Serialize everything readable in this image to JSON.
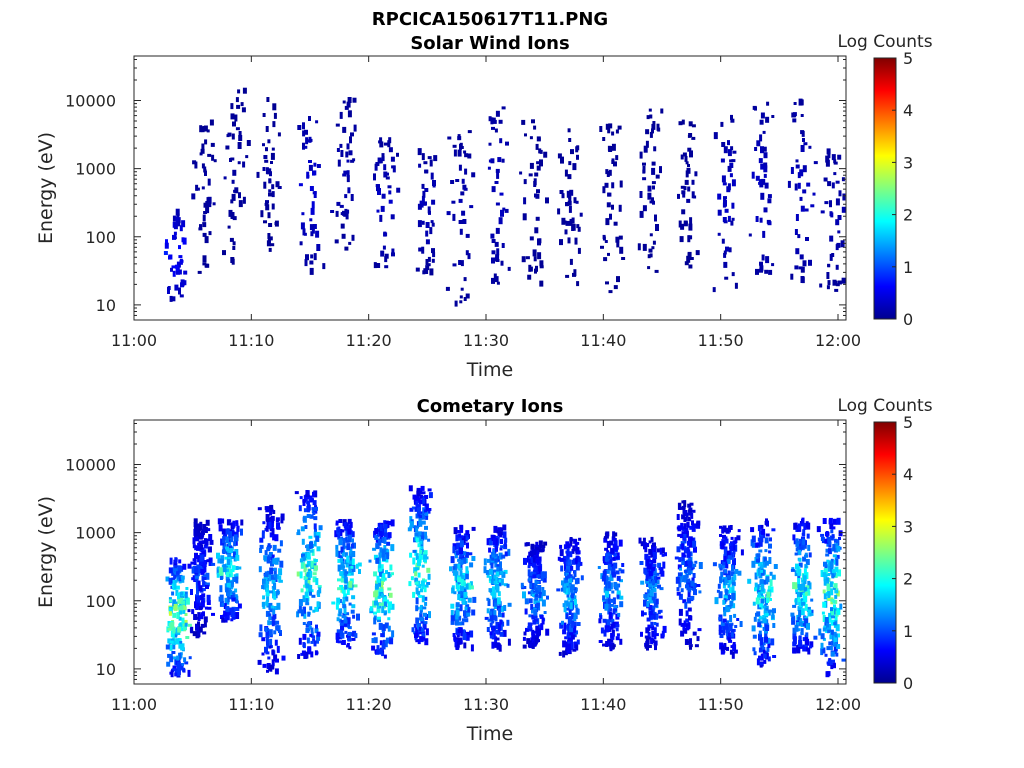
{
  "figure": {
    "title": "RPCICA150617T11.PNG"
  },
  "colorbar_scale": {
    "colors": [
      "#00008F",
      "#0000FF",
      "#0080FF",
      "#00FFFF",
      "#80FF80",
      "#FFFF00",
      "#FF8000",
      "#FF0000",
      "#800000"
    ]
  },
  "chart_data": [
    {
      "type": "heatmap",
      "title": "Solar Wind Ions",
      "xlabel": "Time",
      "ylabel": "Energy (eV)",
      "xticks": [
        "11:00",
        "11:10",
        "11:20",
        "11:30",
        "11:40",
        "11:50",
        "12:00"
      ],
      "xlim": [
        "11:00",
        "12:00"
      ],
      "yscale": "log",
      "yticks": [
        "10",
        "100",
        "1000",
        "10000"
      ],
      "ylim": [
        6,
        45000
      ],
      "colorbar": {
        "label": "Log Counts",
        "range": [
          0,
          5
        ],
        "ticks": [
          "0",
          "1",
          "2",
          "3",
          "4",
          "5"
        ]
      },
      "grid": false,
      "bursts": [
        {
          "time_min": 3.5,
          "e_low": 12,
          "e_high": 260,
          "level": 0.7
        },
        {
          "time_min": 5.8,
          "e_low": 30,
          "e_high": 5000,
          "level": 0.1
        },
        {
          "time_min": 8.5,
          "e_low": 40,
          "e_high": 15000,
          "level": 0.1
        },
        {
          "time_min": 11.5,
          "e_low": 60,
          "e_high": 12000,
          "level": 0.1
        },
        {
          "time_min": 14.8,
          "e_low": 30,
          "e_high": 8000,
          "level": 0.4
        },
        {
          "time_min": 18.0,
          "e_low": 60,
          "e_high": 12000,
          "level": 0.2
        },
        {
          "time_min": 21.2,
          "e_low": 30,
          "e_high": 3000,
          "level": 0.3
        },
        {
          "time_min": 24.8,
          "e_low": 30,
          "e_high": 2500,
          "level": 0.25
        },
        {
          "time_min": 27.8,
          "e_low": 10,
          "e_high": 5000,
          "level": 0.2
        },
        {
          "time_min": 30.8,
          "e_low": 20,
          "e_high": 8000,
          "level": 0.3
        },
        {
          "time_min": 34.0,
          "e_low": 20,
          "e_high": 5000,
          "level": 0.1
        },
        {
          "time_min": 37.0,
          "e_low": 20,
          "e_high": 5000,
          "level": 0.1
        },
        {
          "time_min": 40.5,
          "e_low": 15,
          "e_high": 5000,
          "level": 0.1
        },
        {
          "time_min": 44.0,
          "e_low": 30,
          "e_high": 8000,
          "level": 0.1
        },
        {
          "time_min": 47.0,
          "e_low": 30,
          "e_high": 5000,
          "level": 0.1
        },
        {
          "time_min": 50.5,
          "e_low": 15,
          "e_high": 8000,
          "level": 0.3
        },
        {
          "time_min": 53.5,
          "e_low": 20,
          "e_high": 10000,
          "level": 0.3
        },
        {
          "time_min": 56.8,
          "e_low": 20,
          "e_high": 10000,
          "level": 0.3
        },
        {
          "time_min": 59.5,
          "e_low": 15,
          "e_high": 3000,
          "level": 0.2
        }
      ]
    },
    {
      "type": "heatmap",
      "title": "Cometary Ions",
      "xlabel": "Time",
      "ylabel": "Energy (eV)",
      "xticks": [
        "11:00",
        "11:10",
        "11:20",
        "11:30",
        "11:40",
        "11:50",
        "12:00"
      ],
      "xlim": [
        "11:00",
        "12:00"
      ],
      "yscale": "log",
      "yticks": [
        "10",
        "100",
        "1000",
        "10000"
      ],
      "ylim": [
        6,
        45000
      ],
      "colorbar": {
        "label": "Log Counts",
        "range": [
          0,
          5
        ],
        "ticks": [
          "0",
          "1",
          "2",
          "3",
          "4",
          "5"
        ]
      },
      "grid": false,
      "bursts": [
        {
          "time_min": 3.6,
          "e_low": 8,
          "e_high": 400,
          "level": 2.6
        },
        {
          "time_min": 5.5,
          "e_low": 30,
          "e_high": 1500,
          "level": 1.0
        },
        {
          "time_min": 8.0,
          "e_low": 50,
          "e_high": 1500,
          "level": 2.0
        },
        {
          "time_min": 11.5,
          "e_low": 8,
          "e_high": 2500,
          "level": 1.6
        },
        {
          "time_min": 14.8,
          "e_low": 15,
          "e_high": 4000,
          "level": 2.2
        },
        {
          "time_min": 18.0,
          "e_low": 20,
          "e_high": 1500,
          "level": 2.1
        },
        {
          "time_min": 21.0,
          "e_low": 15,
          "e_high": 1500,
          "level": 2.3
        },
        {
          "time_min": 24.3,
          "e_low": 20,
          "e_high": 4500,
          "level": 2.2
        },
        {
          "time_min": 27.8,
          "e_low": 20,
          "e_high": 1200,
          "level": 1.9
        },
        {
          "time_min": 30.8,
          "e_low": 20,
          "e_high": 1200,
          "level": 1.8
        },
        {
          "time_min": 34.0,
          "e_low": 20,
          "e_high": 700,
          "level": 1.4
        },
        {
          "time_min": 37.0,
          "e_low": 15,
          "e_high": 800,
          "level": 1.6
        },
        {
          "time_min": 40.5,
          "e_low": 20,
          "e_high": 1000,
          "level": 1.5
        },
        {
          "time_min": 44.0,
          "e_low": 20,
          "e_high": 800,
          "level": 1.4
        },
        {
          "time_min": 47.0,
          "e_low": 20,
          "e_high": 3000,
          "level": 1.2
        },
        {
          "time_min": 50.5,
          "e_low": 15,
          "e_high": 1200,
          "level": 1.6
        },
        {
          "time_min": 53.5,
          "e_low": 10,
          "e_high": 1500,
          "level": 2.0
        },
        {
          "time_min": 56.8,
          "e_low": 15,
          "e_high": 1500,
          "level": 2.1
        },
        {
          "time_min": 59.3,
          "e_low": 8,
          "e_high": 1500,
          "level": 2.3
        }
      ]
    }
  ]
}
